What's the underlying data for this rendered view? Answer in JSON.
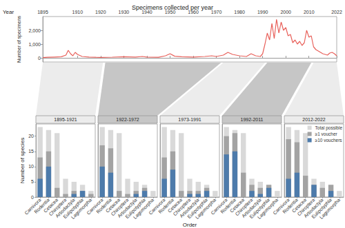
{
  "chart_data": [
    {
      "type": "line",
      "title": "Specimens collected per year",
      "xlabel": "Year",
      "ylabel": "Number of specimens",
      "x": [
        1895,
        1897,
        1900,
        1903,
        1905,
        1906,
        1907,
        1908,
        1909,
        1910,
        1912,
        1915,
        1918,
        1920,
        1925,
        1930,
        1935,
        1938,
        1940,
        1945,
        1948,
        1950,
        1952,
        1955,
        1960,
        1965,
        1968,
        1970,
        1973,
        1975,
        1977,
        1980,
        1983,
        1985,
        1987,
        1989,
        1990,
        1991,
        1992,
        1993,
        1994,
        1995,
        1996,
        1997,
        1998,
        1999,
        2000,
        2001,
        2002,
        2003,
        2004,
        2005,
        2006,
        2007,
        2008,
        2009,
        2010,
        2011,
        2012,
        2013,
        2014,
        2015,
        2016,
        2017,
        2018,
        2019,
        2020,
        2021,
        2022
      ],
      "values": [
        20,
        40,
        60,
        80,
        200,
        550,
        300,
        150,
        400,
        250,
        100,
        60,
        40,
        30,
        50,
        80,
        60,
        100,
        60,
        40,
        150,
        300,
        120,
        80,
        60,
        100,
        150,
        100,
        200,
        400,
        250,
        150,
        100,
        300,
        150,
        100,
        300,
        1000,
        1800,
        1300,
        2500,
        1400,
        2800,
        1800,
        2600,
        2000,
        2200,
        1600,
        1700,
        1100,
        1300,
        1000,
        1200,
        900,
        1100,
        2000,
        1500,
        1600,
        800,
        600,
        500,
        400,
        300,
        250,
        200,
        350,
        400,
        300,
        150
      ],
      "color": "#e8605a",
      "xlim": [
        1895,
        2022
      ],
      "xticks": [
        1895,
        1910,
        1920,
        1930,
        1940,
        1950,
        1960,
        1970,
        1980,
        1990,
        2000,
        2010,
        2022
      ],
      "ylim": [
        -300,
        3000
      ],
      "yticks": [
        0,
        {
          "value": 1000,
          "label": "1,000"
        },
        {
          "value": 2000,
          "label": "2,000"
        }
      ],
      "grid": false
    },
    {
      "type": "bar",
      "xlabel": "Order",
      "ylabel": "Number of species",
      "categories": [
        "Carnivora",
        "Rodentia",
        "Cetacea",
        "Chiroptera",
        "Artiodactyla",
        "Eulipotyphla",
        "Lagomorpha"
      ],
      "ylim": [
        0,
        24
      ],
      "yticks": [
        0,
        5,
        10,
        15,
        20
      ],
      "grid": false,
      "legend": "top-right",
      "series": [
        {
          "name": "Total possible",
          "color": "#d9d9d9"
        },
        {
          "name": "≥1 voucher",
          "color": "#a3a3a3"
        },
        {
          "name": "≥10 vouchers",
          "color": "#4d7bab"
        }
      ],
      "panels": [
        {
          "title": "1895-1921",
          "values": [
            [
              23,
              22,
              21,
              6,
              5,
              4,
              2
            ],
            [
              13,
              15,
              3,
              1,
              2,
              2,
              1
            ],
            [
              6,
              10,
              0,
              0,
              1,
              2,
              0
            ]
          ]
        },
        {
          "title": "1922-1972",
          "values": [
            [
              23,
              22,
              21,
              6,
              5,
              4,
              2
            ],
            [
              17,
              16,
              2,
              1,
              2,
              3,
              0
            ],
            [
              10,
              8,
              0,
              0,
              1,
              2,
              0
            ]
          ]
        },
        {
          "title": "1973-1991",
          "values": [
            [
              23,
              22,
              21,
              6,
              5,
              4,
              2
            ],
            [
              13,
              15,
              2,
              2,
              2,
              3,
              0
            ],
            [
              6,
              9,
              0,
              1,
              1,
              2,
              0
            ]
          ]
        },
        {
          "title": "1992-2011",
          "values": [
            [
              23,
              22,
              21,
              6,
              5,
              4,
              2
            ],
            [
              20,
              21,
              8,
              4,
              3,
              4,
              0
            ],
            [
              14,
              15,
              0,
              2,
              1,
              3,
              0
            ]
          ]
        },
        {
          "title": "2012-2022",
          "values": [
            [
              23,
              22,
              21,
              6,
              5,
              4,
              2
            ],
            [
              19,
              18,
              7,
              4,
              3,
              4,
              0
            ],
            [
              6,
              8,
              0,
              4,
              0,
              2,
              0
            ]
          ]
        }
      ]
    }
  ]
}
